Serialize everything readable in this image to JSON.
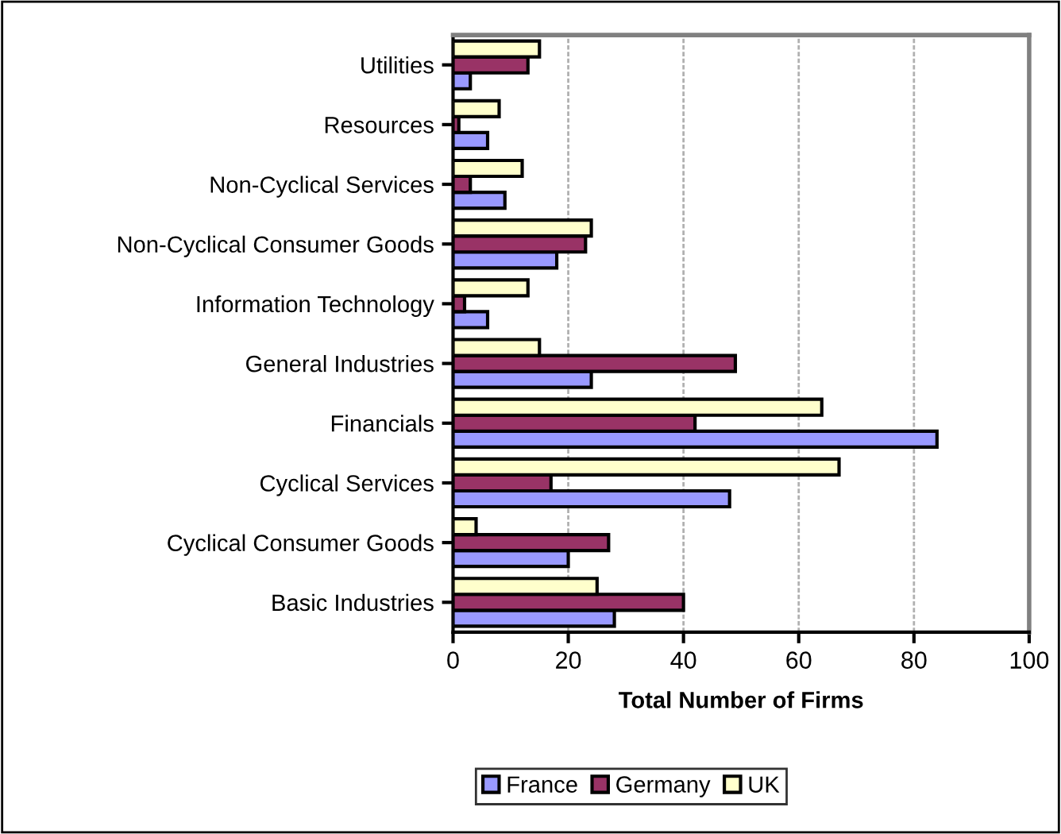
{
  "chart_data": {
    "type": "bar",
    "orientation": "horizontal",
    "xlabel": "Total Number of Firms",
    "categories": [
      "Utilities",
      "Resources",
      "Non-Cyclical Services",
      "Non-Cyclical Consumer Goods",
      "Information Technology",
      "General Industries",
      "Financials",
      "Cyclical Services",
      "Cyclical Consumer Goods",
      "Basic Industries"
    ],
    "series": [
      {
        "name": "France",
        "color": "#9999ff",
        "values": [
          3,
          6,
          9,
          18,
          6,
          24,
          84,
          48,
          20,
          28
        ]
      },
      {
        "name": "Germany",
        "color": "#993366",
        "values": [
          13,
          1,
          3,
          23,
          2,
          49,
          42,
          17,
          27,
          40
        ]
      },
      {
        "name": "UK",
        "color": "#ffffcc",
        "values": [
          15,
          8,
          12,
          24,
          13,
          15,
          64,
          67,
          4,
          25
        ]
      }
    ],
    "xlim": [
      0,
      100
    ],
    "xticks": [
      0,
      20,
      40,
      60,
      80,
      100
    ],
    "grid": "x",
    "legend": "bottom"
  }
}
